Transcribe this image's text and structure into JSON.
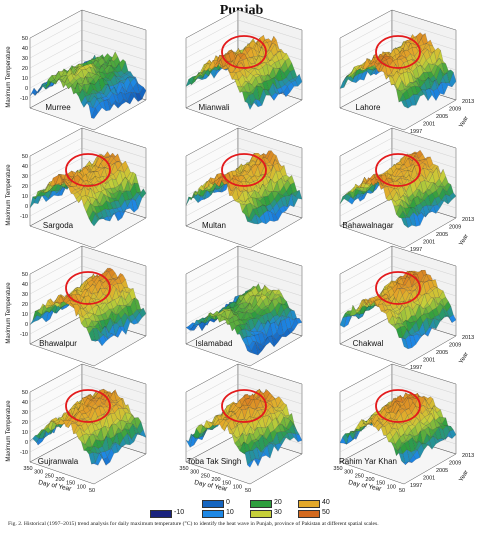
{
  "title": "Punjab",
  "caption": "Fig. 2. Historical (1997–2015) trend analysis for daily maximum temperature (°C) to identify the heat wave in Punjab, province of Pakistan at different spatial scales.",
  "chart_data": {
    "type": "3d-surface",
    "zlabel": "Maximum Temperature",
    "xlabel": "Day of Year",
    "ylabel": "Year",
    "z_ticks": [
      "50",
      "40",
      "30",
      "20",
      "10",
      "0",
      "-10"
    ],
    "year_ticks": [
      "2013",
      "2009",
      "2005",
      "2001",
      "1997"
    ],
    "day_ticks": [
      "350",
      "300",
      "250",
      "200",
      "150",
      "100",
      "50"
    ],
    "legend": [
      {
        "label": "-10",
        "color": "#1a237e"
      },
      {
        "label": "0",
        "color": "#1565c0"
      },
      {
        "label": "10",
        "color": "#1e88e5"
      },
      {
        "label": "20",
        "color": "#2e9e3e"
      },
      {
        "label": "30",
        "color": "#c6cf3a"
      },
      {
        "label": "40",
        "color": "#e3a82a"
      },
      {
        "label": "50",
        "color": "#d2691e"
      }
    ],
    "panels": [
      {
        "name": "Murree",
        "heat_wave_marked": false
      },
      {
        "name": "Mianwali",
        "heat_wave_marked": true
      },
      {
        "name": "Lahore",
        "heat_wave_marked": true
      },
      {
        "name": "Sargoda",
        "heat_wave_marked": true
      },
      {
        "name": "Multan",
        "heat_wave_marked": true
      },
      {
        "name": "Bahawalnagar",
        "heat_wave_marked": true
      },
      {
        "name": "Bhawalpur",
        "heat_wave_marked": true
      },
      {
        "name": "Islamabad",
        "heat_wave_marked": false
      },
      {
        "name": "Chakwal",
        "heat_wave_marked": true
      },
      {
        "name": "Gujranwala",
        "heat_wave_marked": true
      },
      {
        "name": "Toba Tak Singh",
        "heat_wave_marked": true
      },
      {
        "name": "Rahim Yar Khan",
        "heat_wave_marked": true
      }
    ]
  }
}
